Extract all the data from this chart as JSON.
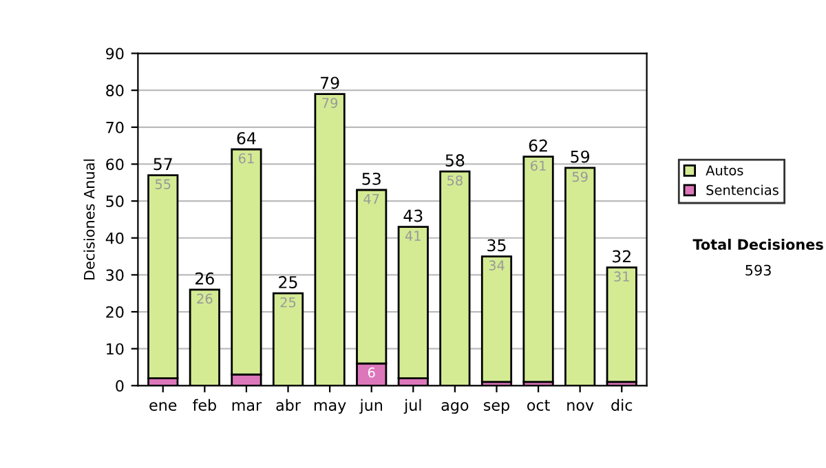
{
  "chart_data": {
    "type": "bar",
    "stacked": true,
    "ylabel": "Decisiones Anual",
    "categories": [
      "ene",
      "feb",
      "mar",
      "abr",
      "may",
      "jun",
      "jul",
      "ago",
      "sep",
      "oct",
      "nov",
      "dic"
    ],
    "series": [
      {
        "name": "Sentencias",
        "color": "#dd77bb",
        "values": [
          2,
          0,
          3,
          0,
          0,
          6,
          2,
          0,
          1,
          1,
          0,
          1
        ],
        "value_labels": [
          null,
          null,
          null,
          null,
          null,
          "6",
          null,
          null,
          null,
          null,
          null,
          null
        ]
      },
      {
        "name": "Autos",
        "color": "#d4eb94",
        "values": [
          55,
          26,
          61,
          25,
          79,
          47,
          41,
          58,
          34,
          61,
          59,
          31
        ],
        "value_labels": [
          "55",
          "26",
          "61",
          "25",
          "79",
          "47",
          "41",
          "58",
          "34",
          "61",
          "59",
          "31"
        ]
      }
    ],
    "totals": [
      "57",
      "26",
      "64",
      "25",
      "79",
      "53",
      "43",
      "58",
      "35",
      "62",
      "59",
      "32"
    ],
    "ylim": [
      0,
      90
    ],
    "yticks": [
      0,
      10,
      20,
      30,
      40,
      50,
      60,
      70,
      80,
      90
    ],
    "grid": "y",
    "legend": "right",
    "annotations": [
      "Total Decisiones",
      "593"
    ]
  }
}
